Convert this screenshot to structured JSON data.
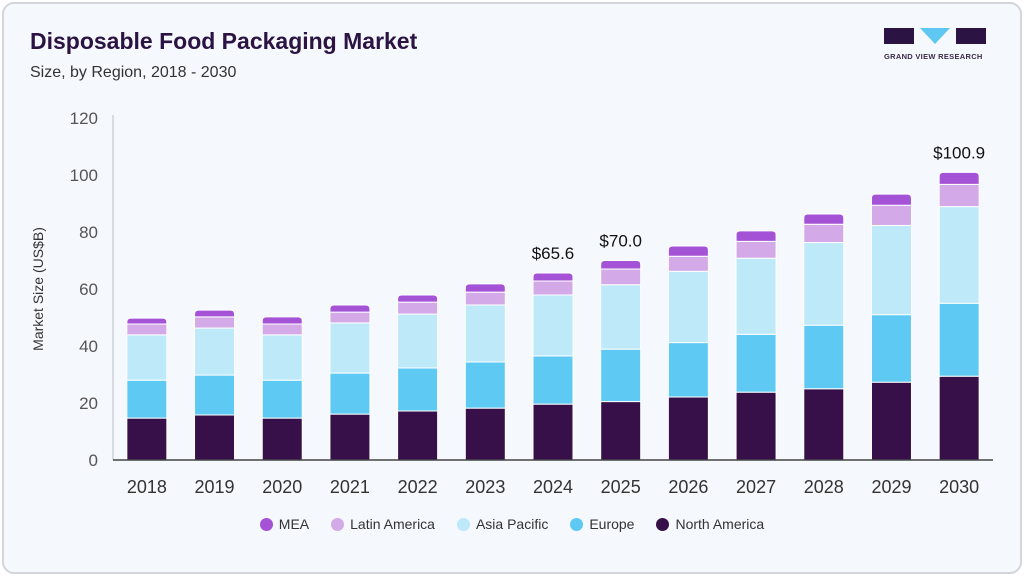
{
  "header": {
    "title": "Disposable Food Packaging Market",
    "subtitle": "Size, by Region, 2018 - 2030"
  },
  "logo": {
    "text": "GRAND VIEW RESEARCH",
    "colors": [
      "#2b1444",
      "#5ec8f2"
    ]
  },
  "chart_data": {
    "type": "bar",
    "stacked": true,
    "title": "Disposable Food Packaging Market",
    "subtitle": "Size, by Region, 2018 - 2030",
    "xlabel": "",
    "ylabel": "Market Size (US$B)",
    "ylim": [
      0,
      120
    ],
    "yticks": [
      0,
      20,
      40,
      60,
      80,
      100,
      120
    ],
    "grid": false,
    "legend_position": "bottom",
    "categories": [
      "2018",
      "2019",
      "2020",
      "2021",
      "2022",
      "2023",
      "2024",
      "2025",
      "2026",
      "2027",
      "2028",
      "2029",
      "2030"
    ],
    "series": [
      {
        "name": "North America",
        "color": "#37104a",
        "values": [
          14.7,
          15.8,
          14.7,
          16.1,
          17.2,
          18.2,
          19.6,
          20.5,
          22.1,
          23.8,
          25.0,
          27.3,
          29.4
        ]
      },
      {
        "name": "Europe",
        "color": "#5ecaf3",
        "values": [
          13.3,
          14.0,
          13.3,
          14.4,
          15.1,
          16.2,
          16.9,
          18.4,
          19.1,
          20.3,
          22.3,
          23.7,
          25.6
        ]
      },
      {
        "name": "Asia Pacific",
        "color": "#bde9f8",
        "values": [
          15.9,
          16.5,
          15.9,
          17.6,
          18.9,
          20.0,
          21.4,
          22.6,
          25.0,
          26.7,
          29.0,
          31.3,
          33.9
        ]
      },
      {
        "name": "Latin America",
        "color": "#d3a9e8",
        "values": [
          3.8,
          3.9,
          3.8,
          3.8,
          4.2,
          4.5,
          4.9,
          5.5,
          5.3,
          5.9,
          6.4,
          7.1,
          7.8
        ]
      },
      {
        "name": "MEA",
        "color": "#a453d6",
        "values": [
          2.1,
          2.4,
          2.5,
          2.5,
          2.5,
          2.9,
          2.8,
          3.0,
          3.6,
          3.7,
          3.6,
          3.9,
          4.2
        ]
      }
    ],
    "annotations": [
      {
        "category": "2024",
        "label": "$65.6"
      },
      {
        "category": "2025",
        "label": "$70.0"
      },
      {
        "category": "2030",
        "label": "$100.9"
      }
    ],
    "legend_order": [
      "MEA",
      "Latin America",
      "Asia Pacific",
      "Europe",
      "North America"
    ]
  }
}
